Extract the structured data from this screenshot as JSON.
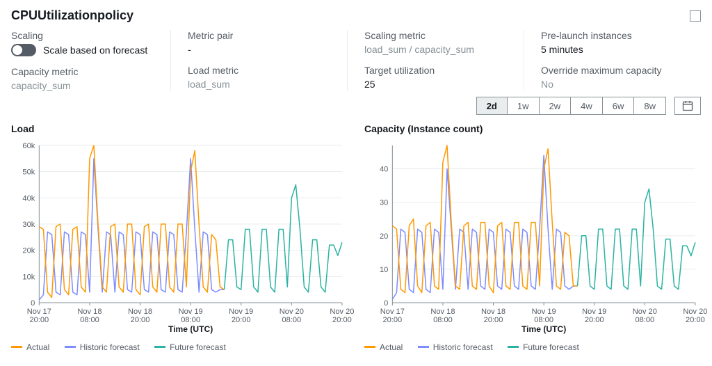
{
  "title": "CPUUtilizationpolicy",
  "metrics": {
    "scaling": {
      "label": "Scaling",
      "value": "Scale based on forecast"
    },
    "capacity_metric": {
      "label": "Capacity metric",
      "value": "capacity_sum"
    },
    "metric_pair": {
      "label": "Metric pair",
      "value": "-"
    },
    "load_metric": {
      "label": "Load metric",
      "value": "load_sum"
    },
    "scaling_metric": {
      "label": "Scaling metric",
      "value": "load_sum / capacity_sum"
    },
    "target_utilization": {
      "label": "Target utilization",
      "value": "25"
    },
    "prelaunch": {
      "label": "Pre-launch instances",
      "value": "5 minutes"
    },
    "override_max": {
      "label": "Override maximum capacity",
      "value": "No"
    }
  },
  "ranges": [
    "2d",
    "1w",
    "2w",
    "4w",
    "6w",
    "8w"
  ],
  "active_range": "2d",
  "legend_labels": {
    "actual": "Actual",
    "historic": "Historic forecast",
    "future": "Future forecast"
  },
  "series_colors": {
    "actual": "#ff9900",
    "historic": "#7d8cff",
    "future": "#2bb3a3"
  },
  "chart_style": {
    "background": "#ffffff",
    "grid_color": "#eaeded",
    "axis_color": "#879196",
    "tick_font_size": 11,
    "tick_color": "#545b64",
    "line_width": 1.5
  },
  "x_axis": {
    "label": "Time (UTC)",
    "ticks": [
      {
        "t": 0,
        "l1": "Nov 17",
        "l2": "20:00"
      },
      {
        "t": 12,
        "l1": "Nov 18",
        "l2": "08:00"
      },
      {
        "t": 24,
        "l1": "Nov 18",
        "l2": "20:00"
      },
      {
        "t": 36,
        "l1": "Nov 19",
        "l2": "08:00"
      },
      {
        "t": 48,
        "l1": "Nov 19",
        "l2": "20:00"
      },
      {
        "t": 60,
        "l1": "Nov 20",
        "l2": "08:00"
      },
      {
        "t": 72,
        "l1": "Nov 20",
        "l2": "20:00"
      }
    ],
    "tmin": 0,
    "tmax": 72
  },
  "load_chart": {
    "title": "Load",
    "ymin": 0,
    "ymax": 60000,
    "ytick_step": 10000,
    "ytick_labels": [
      "0",
      "10k",
      "20k",
      "30k",
      "40k",
      "50k",
      "60k"
    ],
    "actual": [
      [
        0,
        29000
      ],
      [
        1,
        28000
      ],
      [
        2,
        4000
      ],
      [
        3,
        2000
      ],
      [
        4,
        29000
      ],
      [
        5,
        30000
      ],
      [
        6,
        5000
      ],
      [
        7,
        3000
      ],
      [
        8,
        28000
      ],
      [
        9,
        29000
      ],
      [
        10,
        6000
      ],
      [
        11,
        4000
      ],
      [
        12,
        55000
      ],
      [
        13,
        60000
      ],
      [
        14,
        30000
      ],
      [
        15,
        6000
      ],
      [
        16,
        4000
      ],
      [
        17,
        29000
      ],
      [
        18,
        30000
      ],
      [
        19,
        6000
      ],
      [
        20,
        4000
      ],
      [
        21,
        30000
      ],
      [
        22,
        30000
      ],
      [
        23,
        5000
      ],
      [
        24,
        3000
      ],
      [
        25,
        29000
      ],
      [
        26,
        30000
      ],
      [
        27,
        6000
      ],
      [
        28,
        4000
      ],
      [
        29,
        30000
      ],
      [
        30,
        30000
      ],
      [
        31,
        6000
      ],
      [
        32,
        4000
      ],
      [
        33,
        30000
      ],
      [
        34,
        30000
      ],
      [
        35,
        6000
      ],
      [
        36,
        50000
      ],
      [
        37,
        58000
      ],
      [
        38,
        30000
      ],
      [
        39,
        6000
      ],
      [
        40,
        4000
      ],
      [
        41,
        26000
      ],
      [
        42,
        24000
      ],
      [
        43,
        6000
      ],
      [
        44,
        5000
      ]
    ],
    "historic": [
      [
        0,
        1000
      ],
      [
        1,
        3000
      ],
      [
        2,
        27000
      ],
      [
        3,
        26000
      ],
      [
        4,
        4000
      ],
      [
        5,
        3000
      ],
      [
        6,
        27000
      ],
      [
        7,
        26000
      ],
      [
        8,
        4000
      ],
      [
        9,
        3000
      ],
      [
        10,
        27000
      ],
      [
        11,
        26000
      ],
      [
        12,
        4000
      ],
      [
        13,
        55000
      ],
      [
        14,
        28000
      ],
      [
        15,
        4000
      ],
      [
        16,
        27000
      ],
      [
        17,
        26000
      ],
      [
        18,
        4000
      ],
      [
        19,
        27000
      ],
      [
        20,
        26000
      ],
      [
        21,
        5000
      ],
      [
        22,
        4000
      ],
      [
        23,
        27000
      ],
      [
        24,
        26000
      ],
      [
        25,
        5000
      ],
      [
        26,
        4000
      ],
      [
        27,
        27000
      ],
      [
        28,
        26000
      ],
      [
        29,
        5000
      ],
      [
        30,
        4000
      ],
      [
        31,
        27000
      ],
      [
        32,
        26000
      ],
      [
        33,
        5000
      ],
      [
        34,
        4000
      ],
      [
        35,
        27000
      ],
      [
        36,
        55000
      ],
      [
        37,
        28000
      ],
      [
        38,
        4000
      ],
      [
        39,
        27000
      ],
      [
        40,
        26000
      ],
      [
        41,
        5000
      ],
      [
        42,
        4000
      ],
      [
        43,
        5000
      ],
      [
        44,
        5000
      ]
    ],
    "future": [
      [
        44,
        5000
      ],
      [
        45,
        24000
      ],
      [
        46,
        24000
      ],
      [
        47,
        6000
      ],
      [
        48,
        5000
      ],
      [
        49,
        28000
      ],
      [
        50,
        28000
      ],
      [
        51,
        6000
      ],
      [
        52,
        4000
      ],
      [
        53,
        28000
      ],
      [
        54,
        28000
      ],
      [
        55,
        6000
      ],
      [
        56,
        4000
      ],
      [
        57,
        28000
      ],
      [
        58,
        28000
      ],
      [
        59,
        6000
      ],
      [
        60,
        40000
      ],
      [
        61,
        45000
      ],
      [
        62,
        28000
      ],
      [
        63,
        6000
      ],
      [
        64,
        4000
      ],
      [
        65,
        24000
      ],
      [
        66,
        24000
      ],
      [
        67,
        6000
      ],
      [
        68,
        4000
      ],
      [
        69,
        22000
      ],
      [
        70,
        22000
      ],
      [
        71,
        18000
      ],
      [
        72,
        23000
      ]
    ]
  },
  "capacity_chart": {
    "title": "Capacity (Instance count)",
    "ymin": 0,
    "ymax": 47,
    "ytick_step": 10,
    "ytick_labels": [
      "0",
      "10",
      "20",
      "30",
      "40"
    ],
    "actual": [
      [
        0,
        23
      ],
      [
        1,
        22
      ],
      [
        2,
        4
      ],
      [
        3,
        3
      ],
      [
        4,
        23
      ],
      [
        5,
        25
      ],
      [
        6,
        5
      ],
      [
        7,
        3
      ],
      [
        8,
        23
      ],
      [
        9,
        24
      ],
      [
        10,
        5
      ],
      [
        11,
        4
      ],
      [
        12,
        42
      ],
      [
        13,
        47
      ],
      [
        14,
        24
      ],
      [
        15,
        5
      ],
      [
        16,
        4
      ],
      [
        17,
        23
      ],
      [
        18,
        24
      ],
      [
        19,
        5
      ],
      [
        20,
        4
      ],
      [
        21,
        24
      ],
      [
        22,
        24
      ],
      [
        23,
        5
      ],
      [
        24,
        3
      ],
      [
        25,
        23
      ],
      [
        26,
        24
      ],
      [
        27,
        5
      ],
      [
        28,
        4
      ],
      [
        29,
        24
      ],
      [
        30,
        24
      ],
      [
        31,
        5
      ],
      [
        32,
        4
      ],
      [
        33,
        24
      ],
      [
        34,
        24
      ],
      [
        35,
        5
      ],
      [
        36,
        40
      ],
      [
        37,
        46
      ],
      [
        38,
        24
      ],
      [
        39,
        5
      ],
      [
        40,
        4
      ],
      [
        41,
        21
      ],
      [
        42,
        20
      ],
      [
        43,
        5
      ],
      [
        44,
        5
      ]
    ],
    "historic": [
      [
        0,
        1
      ],
      [
        1,
        3
      ],
      [
        2,
        22
      ],
      [
        3,
        21
      ],
      [
        4,
        4
      ],
      [
        5,
        3
      ],
      [
        6,
        22
      ],
      [
        7,
        21
      ],
      [
        8,
        4
      ],
      [
        9,
        3
      ],
      [
        10,
        22
      ],
      [
        11,
        21
      ],
      [
        12,
        4
      ],
      [
        13,
        40
      ],
      [
        14,
        22
      ],
      [
        15,
        4
      ],
      [
        16,
        22
      ],
      [
        17,
        21
      ],
      [
        18,
        4
      ],
      [
        19,
        22
      ],
      [
        20,
        21
      ],
      [
        21,
        5
      ],
      [
        22,
        4
      ],
      [
        23,
        22
      ],
      [
        24,
        21
      ],
      [
        25,
        5
      ],
      [
        26,
        4
      ],
      [
        27,
        22
      ],
      [
        28,
        21
      ],
      [
        29,
        5
      ],
      [
        30,
        4
      ],
      [
        31,
        22
      ],
      [
        32,
        21
      ],
      [
        33,
        5
      ],
      [
        34,
        4
      ],
      [
        35,
        22
      ],
      [
        36,
        44
      ],
      [
        37,
        22
      ],
      [
        38,
        4
      ],
      [
        39,
        22
      ],
      [
        40,
        21
      ],
      [
        41,
        5
      ],
      [
        42,
        4
      ],
      [
        43,
        5
      ],
      [
        44,
        5
      ]
    ],
    "future": [
      [
        44,
        5
      ],
      [
        45,
        20
      ],
      [
        46,
        20
      ],
      [
        47,
        5
      ],
      [
        48,
        4
      ],
      [
        49,
        22
      ],
      [
        50,
        22
      ],
      [
        51,
        5
      ],
      [
        52,
        4
      ],
      [
        53,
        22
      ],
      [
        54,
        22
      ],
      [
        55,
        5
      ],
      [
        56,
        4
      ],
      [
        57,
        22
      ],
      [
        58,
        22
      ],
      [
        59,
        5
      ],
      [
        60,
        30
      ],
      [
        61,
        34
      ],
      [
        62,
        22
      ],
      [
        63,
        5
      ],
      [
        64,
        4
      ],
      [
        65,
        19
      ],
      [
        66,
        19
      ],
      [
        67,
        5
      ],
      [
        68,
        4
      ],
      [
        69,
        17
      ],
      [
        70,
        17
      ],
      [
        71,
        14
      ],
      [
        72,
        18
      ]
    ]
  }
}
